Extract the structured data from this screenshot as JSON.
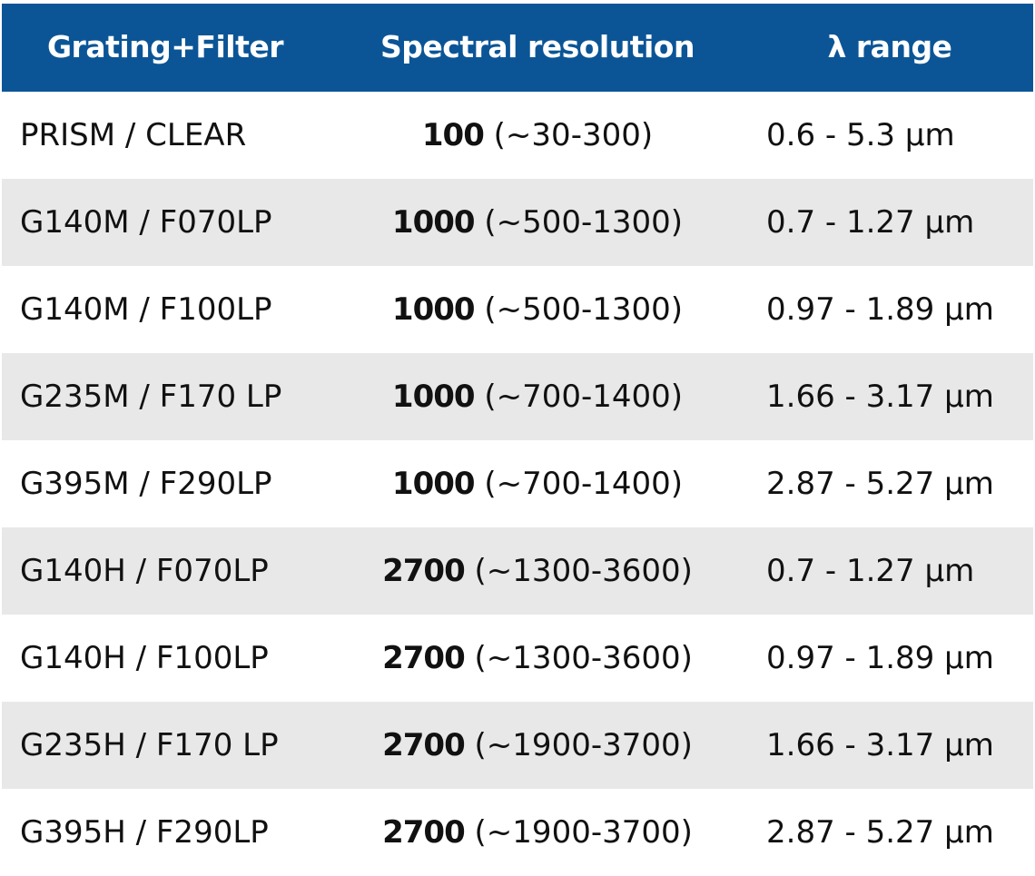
{
  "header": {
    "col1": "Grating+Filter",
    "col2": "Spectral resolution",
    "col3": "λ range"
  },
  "rows": [
    {
      "config": "PRISM / CLEAR",
      "res": "100",
      "range": "(~30-300)",
      "lambda": "0.6 - 5.3 µm"
    },
    {
      "config": "G140M / F070LP",
      "res": "1000",
      "range": "(~500-1300)",
      "lambda": "0.7 - 1.27 µm"
    },
    {
      "config": "G140M / F100LP",
      "res": "1000",
      "range": " (~500-1300)",
      "lambda": "0.97 - 1.89 µm"
    },
    {
      "config": "G235M / F170 LP",
      "res": "1000",
      "range": "(~700-1400)",
      "lambda": "1.66 - 3.17 µm"
    },
    {
      "config": "G395M / F290LP",
      "res": "1000",
      "range": "(~700-1400)",
      "lambda": "2.87 - 5.27 µm"
    },
    {
      "config": "G140H / F070LP",
      "res": "2700",
      "range": "(~1300-3600)",
      "lambda": "0.7 - 1.27 µm"
    },
    {
      "config": "G140H / F100LP",
      "res": "2700",
      "range": "(~1300-3600)",
      "lambda": "0.97 - 1.89 µm"
    },
    {
      "config": "G235H / F170 LP",
      "res": "2700",
      "range": "(~1900-3700)",
      "lambda": "1.66 - 3.17 µm"
    },
    {
      "config": "G395H / F290LP",
      "res": "2700",
      "range": "(~1900-3700)",
      "lambda": "2.87 - 5.27 µm"
    }
  ]
}
